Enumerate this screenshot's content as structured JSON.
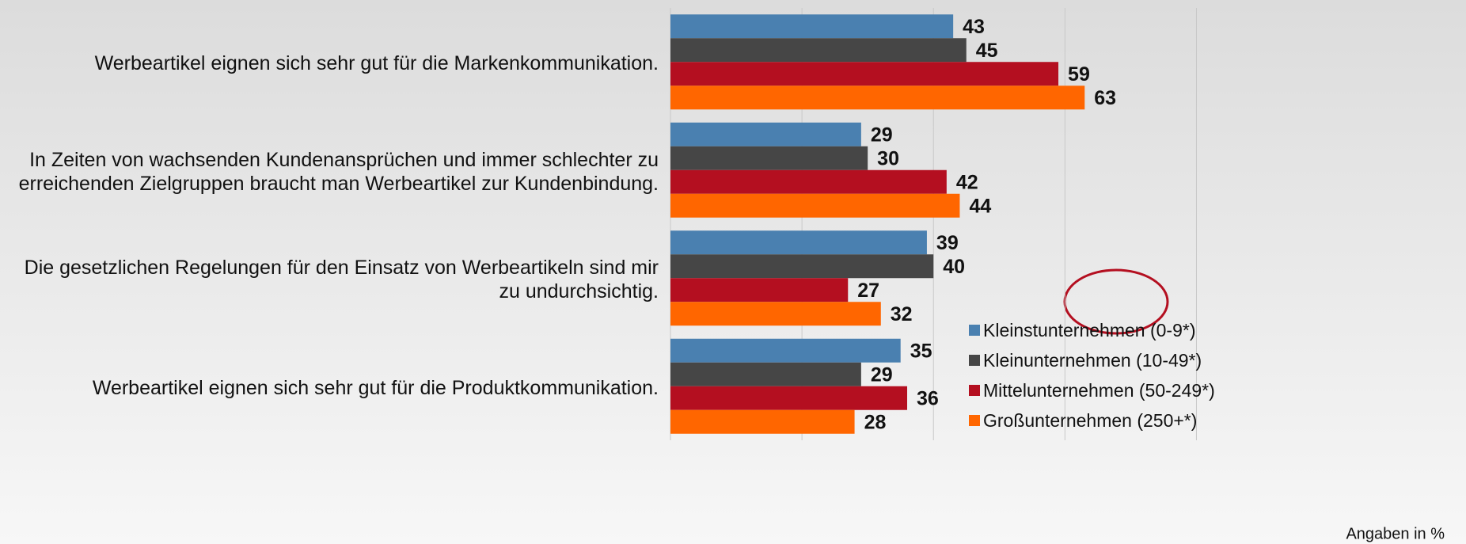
{
  "chart_data": {
    "type": "bar",
    "orientation": "horizontal",
    "categories": [
      "Werbeartikel eignen sich sehr gut für die Markenkommunikation.",
      "In Zeiten von wachsenden Kundenansprüchen und immer schlechter zu erreichenden Zielgruppen braucht man Werbeartikel zur Kundenbindung.",
      "Die gesetzlichen Regelungen für den Einsatz von Werbeartikeln sind mir zu undurchsichtig.",
      "Werbeartikel eignen sich sehr gut  für die Produktkommunikation."
    ],
    "series": [
      {
        "name": "Kleinstunternehmen (0-9*)",
        "color": "#4a80b0",
        "values": [
          43,
          29,
          39,
          35
        ]
      },
      {
        "name": "Kleinunternehmen (10-49*)",
        "color": "#464646",
        "values": [
          45,
          30,
          40,
          29
        ]
      },
      {
        "name": "Mittelunternehmen (50-249*)",
        "color": "#b40f20",
        "values": [
          59,
          42,
          27,
          36
        ]
      },
      {
        "name": "Großunternehmen (250+*)",
        "color": "#ff6600",
        "values": [
          63,
          44,
          32,
          28
        ]
      }
    ],
    "xlim": [
      0,
      85
    ],
    "xticks": [
      0,
      20,
      40,
      60,
      80
    ],
    "grid": true,
    "legend": "lower right",
    "annotations": [
      "Angaben in %"
    ]
  }
}
